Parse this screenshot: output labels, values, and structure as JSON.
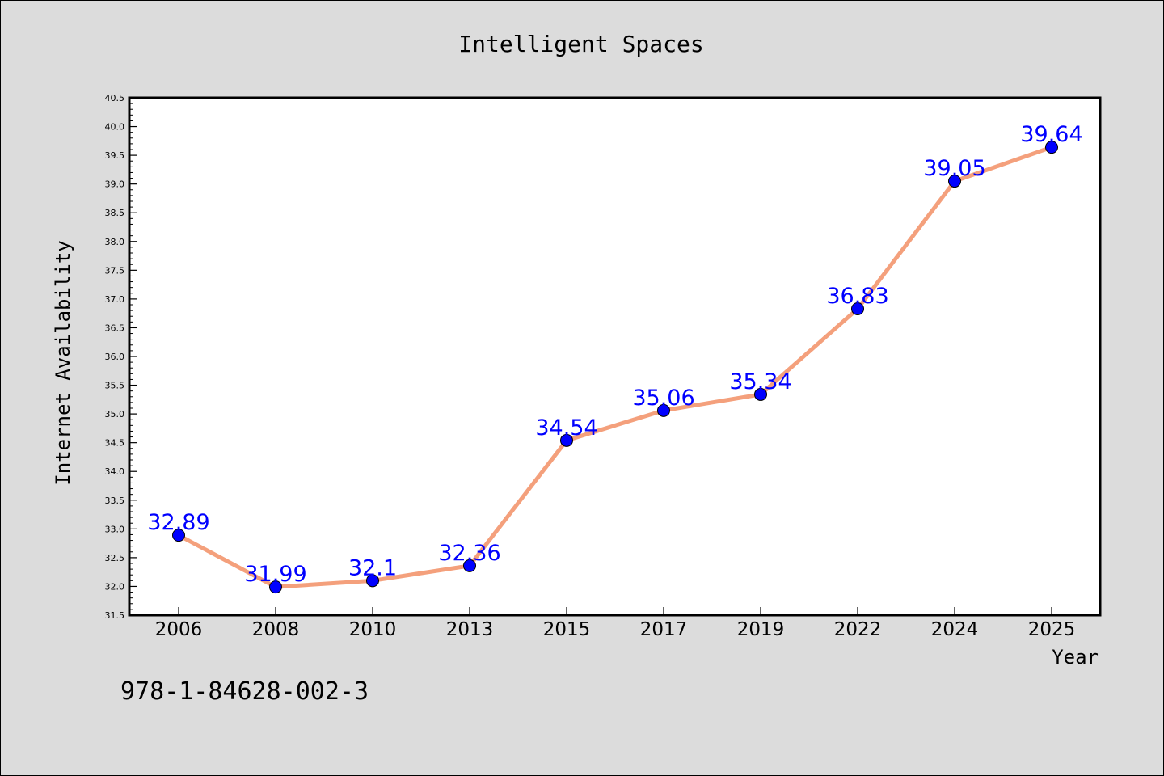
{
  "chart_data": {
    "type": "line",
    "title": "Intelligent Spaces",
    "xlabel": "Year",
    "ylabel": "Internet Availability",
    "categories": [
      "2006",
      "2008",
      "2010",
      "2013",
      "2015",
      "2017",
      "2019",
      "2022",
      "2024",
      "2025"
    ],
    "series": [
      {
        "values": [
          32.89,
          31.99,
          32.1,
          32.36,
          34.54,
          35.06,
          35.34,
          36.83,
          39.05,
          39.64
        ],
        "labels": [
          "32.89",
          "31.99",
          "32.1",
          "32.36",
          "34.54",
          "35.06",
          "35.34",
          "36.83",
          "39.05",
          "39.64"
        ],
        "line_color": "#f4a07c",
        "marker_color": "#0000ff",
        "label_color": "#0000ff"
      }
    ],
    "ylim": [
      31.5,
      40.5
    ],
    "yticks": [
      31.5,
      32.0,
      32.5,
      33.0,
      33.5,
      34.0,
      34.5,
      35.0,
      35.5,
      36.0,
      36.5,
      37.0,
      37.5,
      38.0,
      38.5,
      39.0,
      39.5,
      40.0,
      40.5
    ],
    "ytick_labels": [
      "31.5",
      "32.0",
      "32.5",
      "33.0",
      "33.5",
      "34.0",
      "34.5",
      "35.0",
      "35.5",
      "36.0",
      "36.5",
      "37.0",
      "37.5",
      "38.0",
      "38.5",
      "39.0",
      "39.5",
      "40.0",
      "40.5"
    ],
    "grid": false,
    "legend": "none",
    "background_color": "#dcdcdc",
    "plot_background": "#ffffff"
  },
  "footer_text": "978-1-84628-002-3"
}
